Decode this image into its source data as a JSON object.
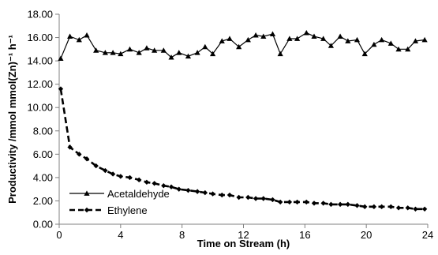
{
  "chart_data": {
    "type": "line",
    "title": "",
    "xlabel": "Time on Stream (h)",
    "ylabel": "Productivity /mmol mmol(Zn)⁻¹ h⁻¹",
    "xlim": [
      0,
      24
    ],
    "ylim": [
      0,
      18
    ],
    "x_ticks": [
      "0",
      "4",
      "8",
      "12",
      "16",
      "20",
      "24"
    ],
    "y_ticks": [
      "0.00",
      "2.00",
      "4.00",
      "6.00",
      "8.00",
      "10.00",
      "12.00",
      "14.00",
      "16.00",
      "18.00"
    ],
    "grid": false,
    "legend_position": "bottom-left",
    "series": [
      {
        "name": "Acetaldehyde",
        "marker": "triangle",
        "line_style": "solid",
        "color": "#000000",
        "x": [
          0.1,
          0.7,
          1.3,
          1.8,
          2.4,
          3.0,
          3.5,
          4.0,
          4.6,
          5.2,
          5.7,
          6.2,
          6.8,
          7.3,
          7.8,
          8.4,
          9.0,
          9.5,
          10.0,
          10.6,
          11.1,
          11.7,
          12.3,
          12.8,
          13.3,
          13.9,
          14.4,
          15.0,
          15.5,
          16.1,
          16.6,
          17.2,
          17.7,
          18.3,
          18.8,
          19.4,
          19.9,
          20.5,
          21.0,
          21.6,
          22.1,
          22.7,
          23.2,
          23.8
        ],
        "y": [
          14.2,
          16.1,
          15.8,
          16.2,
          14.9,
          14.7,
          14.7,
          14.6,
          15.0,
          14.7,
          15.1,
          14.9,
          14.9,
          14.3,
          14.7,
          14.4,
          14.7,
          15.2,
          14.6,
          15.7,
          15.9,
          15.2,
          15.8,
          16.2,
          16.1,
          16.3,
          14.6,
          15.9,
          15.9,
          16.4,
          16.1,
          15.9,
          15.3,
          16.1,
          15.7,
          15.8,
          14.6,
          15.4,
          15.8,
          15.5,
          15.0,
          15.0,
          15.7,
          15.8
        ]
      },
      {
        "name": "Ethylene",
        "marker": "diamond",
        "line_style": "dashed",
        "color": "#000000",
        "x": [
          0.1,
          0.7,
          1.3,
          1.8,
          2.4,
          3.0,
          3.5,
          4.0,
          4.6,
          5.2,
          5.7,
          6.2,
          6.8,
          7.3,
          7.8,
          8.4,
          9.0,
          9.5,
          10.0,
          10.6,
          11.1,
          11.7,
          12.3,
          12.8,
          13.3,
          13.9,
          14.4,
          15.0,
          15.5,
          16.1,
          16.6,
          17.2,
          17.7,
          18.3,
          18.8,
          19.4,
          19.9,
          20.5,
          21.0,
          21.6,
          22.1,
          22.7,
          23.2,
          23.8
        ],
        "y": [
          11.6,
          6.6,
          6.0,
          5.6,
          5.0,
          4.6,
          4.3,
          4.1,
          4.0,
          3.8,
          3.6,
          3.5,
          3.3,
          3.2,
          3.0,
          2.9,
          2.8,
          2.7,
          2.6,
          2.5,
          2.5,
          2.3,
          2.3,
          2.2,
          2.2,
          2.1,
          1.9,
          1.9,
          1.9,
          1.9,
          1.8,
          1.8,
          1.7,
          1.7,
          1.7,
          1.6,
          1.5,
          1.5,
          1.5,
          1.5,
          1.4,
          1.4,
          1.3,
          1.3
        ]
      }
    ]
  }
}
